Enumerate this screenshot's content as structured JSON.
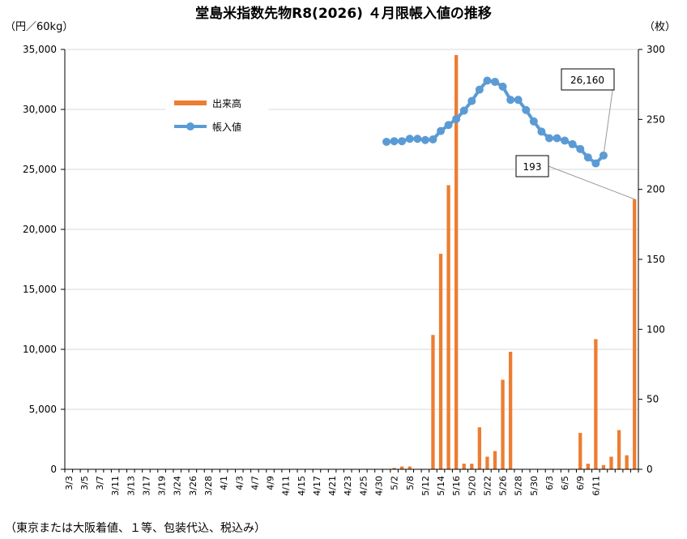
{
  "chart_data": {
    "type": "bar+line",
    "title": "堂島米指数先物R8(2026) ４月限帳入値の推移",
    "left_unit": "（円／60kg）",
    "right_unit": "（枚）",
    "note": "（東京または大阪着値、１等、包装代込、税込み）",
    "left_axis": {
      "min": 0,
      "max": 35000,
      "step": 5000,
      "ticks": [
        "0",
        "5,000",
        "10,000",
        "15,000",
        "20,000",
        "25,000",
        "30,000",
        "35,000"
      ]
    },
    "right_axis": {
      "min": 0,
      "max": 300,
      "step": 50,
      "ticks": [
        "0",
        "50",
        "100",
        "150",
        "200",
        "250",
        "300"
      ]
    },
    "grid": true,
    "legend_position": "top-left",
    "legend": {
      "bar": "出来高",
      "line": "帳入値"
    },
    "colors": {
      "bar": "#ed7d31",
      "line": "#5b9bd5",
      "grid": "#d9d9d9"
    },
    "x_labels": [
      "3/3",
      "3/5",
      "3/7",
      "3/11",
      "3/13",
      "3/17",
      "3/19",
      "3/24",
      "3/26",
      "3/28",
      "4/1",
      "4/3",
      "4/7",
      "4/9",
      "4/11",
      "4/15",
      "4/17",
      "4/21",
      "4/23",
      "4/25",
      "4/30",
      "5/2",
      "5/8",
      "5/12",
      "5/14",
      "5/16",
      "5/20",
      "5/22",
      "5/26",
      "5/28",
      "5/30",
      "6/3",
      "6/5",
      "6/9",
      "6/11"
    ],
    "volume_series": {
      "name": "出来高",
      "values": [
        0,
        0,
        0,
        0,
        0,
        0,
        0,
        0,
        0,
        0,
        0,
        0,
        0,
        0,
        0,
        0,
        0,
        0,
        0,
        0,
        0,
        0,
        0,
        0,
        0,
        0,
        0,
        0,
        0,
        0,
        0,
        0,
        0,
        0,
        0,
        0,
        0,
        0,
        0,
        0,
        0,
        0,
        1,
        2,
        2,
        0,
        0,
        96,
        154,
        203,
        296,
        4,
        4,
        30,
        9,
        13,
        64,
        84,
        0,
        0,
        0,
        0,
        0,
        0,
        0,
        0,
        26,
        4,
        93,
        3,
        9,
        28,
        10,
        193
      ]
    },
    "price_series": {
      "name": "帳入値",
      "start_index": 41,
      "values": [
        27300,
        27350,
        27350,
        27550,
        27550,
        27450,
        27500,
        28200,
        28700,
        29200,
        29900,
        30700,
        31650,
        32400,
        32300,
        31900,
        30800,
        30800,
        29950,
        29000,
        28150,
        27600,
        27600,
        27400,
        27100,
        26700,
        26000,
        25500,
        26160
      ]
    },
    "annotations": [
      {
        "text": "26,160",
        "target": "price_last"
      },
      {
        "text": "193",
        "target": "volume_last"
      }
    ]
  }
}
